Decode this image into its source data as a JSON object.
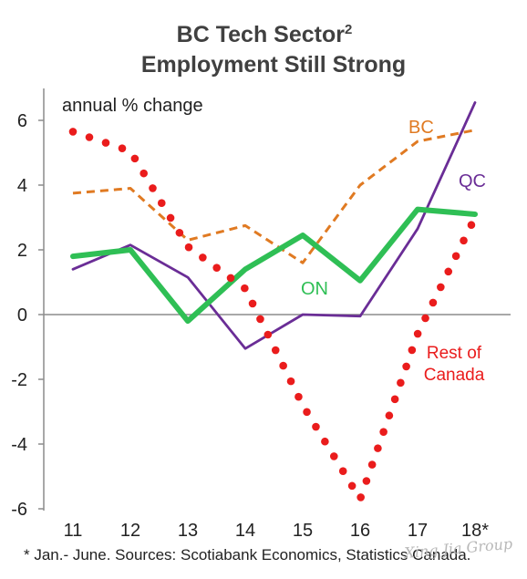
{
  "chart_data": {
    "type": "line",
    "title": "BC Tech Sector",
    "title_superscript": "2",
    "title_line2": "Employment Still Strong",
    "ylabel": "annual % change",
    "ylim": [
      -6,
      6.5
    ],
    "yticks": [
      6,
      4,
      2,
      0,
      -2,
      -4,
      -6
    ],
    "categories": [
      "11",
      "12",
      "13",
      "14",
      "15",
      "16",
      "17",
      "18*"
    ],
    "grid": false,
    "series": [
      {
        "name": "BC",
        "color": "#e07a22",
        "style": "dashed",
        "values": [
          3.75,
          3.9,
          2.3,
          2.75,
          1.6,
          4.0,
          5.35,
          5.7
        ]
      },
      {
        "name": "QC",
        "color": "#6a2d96",
        "style": "solid",
        "values": [
          1.4,
          2.15,
          1.15,
          -1.05,
          0.0,
          -0.05,
          2.65,
          6.55
        ]
      },
      {
        "name": "ON",
        "color": "#2fbf55",
        "style": "thick",
        "values": [
          1.8,
          2.0,
          -0.2,
          1.4,
          2.45,
          1.05,
          3.25,
          3.1
        ]
      },
      {
        "name": "Rest of Canada",
        "color": "#ea1c1c",
        "style": "dotted",
        "values": [
          5.65,
          5.05,
          2.1,
          0.8,
          -2.8,
          -5.7,
          -0.6,
          3.0
        ]
      }
    ],
    "footnote": "* Jan.- June. Sources: Scotiabank Economics, Statistics Canada.",
    "watermark": "Xing Jia Group"
  }
}
